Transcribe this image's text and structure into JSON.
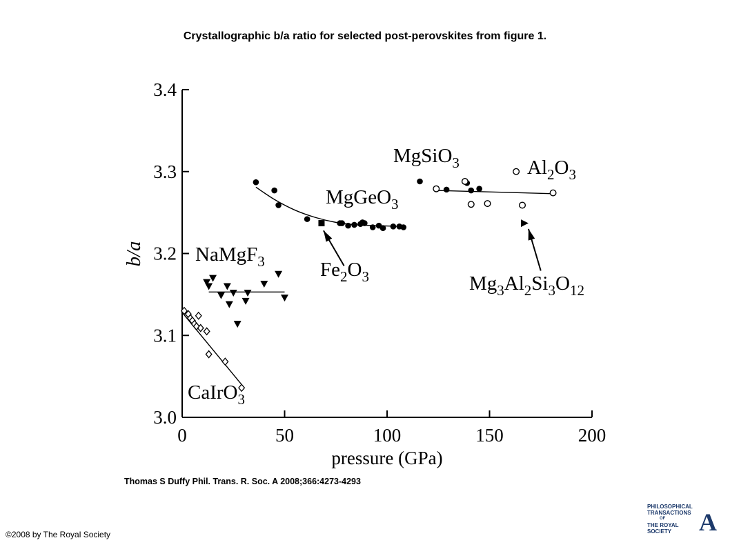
{
  "title": "Crystallographic b/a ratio for selected post-perovskites from figure 1.",
  "citation": "Thomas S Duffy Phil. Trans. R. Soc. A 2008;366:4273-4293",
  "copyright": "©2008 by The Royal Society",
  "logo": {
    "lines": [
      "PHILOSOPHICAL",
      "TRANSACTIONS",
      "OF",
      "THE ROYAL",
      "SOCIETY"
    ],
    "letter": "A"
  },
  "chart_data": {
    "type": "scatter",
    "xlabel": "pressure (GPa)",
    "ylabel": "b/a",
    "xlim": [
      0,
      200
    ],
    "ylim": [
      3.0,
      3.4
    ],
    "xticks": [
      "0",
      "50",
      "100",
      "150",
      "200"
    ],
    "yticks": [
      "3.0",
      "3.1",
      "3.2",
      "3.3",
      "3.4"
    ],
    "series": [
      {
        "name": "CaIrO3",
        "label_parts": [
          [
            "CaIrO",
            ""
          ],
          [
            "3",
            "sub"
          ]
        ],
        "marker": "diamond-open",
        "points": [
          [
            1,
            3.13
          ],
          [
            3,
            3.126
          ],
          [
            4,
            3.121
          ],
          [
            5,
            3.118
          ],
          [
            6,
            3.114
          ],
          [
            7,
            3.111
          ],
          [
            8,
            3.124
          ],
          [
            9,
            3.109
          ],
          [
            12,
            3.105
          ],
          [
            13,
            3.077
          ],
          [
            21,
            3.068
          ],
          [
            29,
            3.036
          ]
        ],
        "fit": {
          "kind": "line",
          "from": [
            0,
            3.128
          ],
          "to": [
            30,
            3.037
          ]
        }
      },
      {
        "name": "NaMgF3",
        "label_parts": [
          [
            "NaMgF",
            ""
          ],
          [
            "3",
            "sub"
          ]
        ],
        "marker": "triangle-down",
        "points": [
          [
            12,
            3.165
          ],
          [
            13,
            3.16
          ],
          [
            15,
            3.17
          ],
          [
            19,
            3.149
          ],
          [
            22,
            3.16
          ],
          [
            23,
            3.138
          ],
          [
            25,
            3.152
          ],
          [
            27,
            3.114
          ],
          [
            31,
            3.142
          ],
          [
            32,
            3.152
          ],
          [
            40,
            3.163
          ],
          [
            47,
            3.175
          ],
          [
            50,
            3.146
          ]
        ],
        "fit": {
          "kind": "line",
          "from": [
            13,
            3.153
          ],
          "to": [
            50,
            3.153
          ]
        }
      },
      {
        "name": "MgGeO3",
        "label_parts": [
          [
            "MgGeO",
            ""
          ],
          [
            "3",
            "sub"
          ]
        ],
        "marker": "circle-filled",
        "points": [
          [
            36,
            3.287
          ],
          [
            45,
            3.277
          ],
          [
            47,
            3.259
          ],
          [
            61,
            3.242
          ],
          [
            77,
            3.237
          ],
          [
            78,
            3.237
          ],
          [
            81,
            3.234
          ],
          [
            84,
            3.235
          ],
          [
            87,
            3.236
          ],
          [
            88,
            3.238
          ],
          [
            89,
            3.237
          ],
          [
            93,
            3.232
          ],
          [
            96,
            3.234
          ],
          [
            98,
            3.231
          ],
          [
            103,
            3.233
          ],
          [
            106,
            3.233
          ],
          [
            108,
            3.232
          ]
        ],
        "fit": {
          "kind": "curve",
          "points": [
            [
              36,
              3.281
            ],
            [
              45,
              3.266
            ],
            [
              55,
              3.253
            ],
            [
              65,
              3.244
            ],
            [
              75,
              3.238
            ],
            [
              85,
              3.235
            ],
            [
              95,
              3.234
            ],
            [
              108,
              3.233
            ]
          ]
        }
      },
      {
        "name": "Fe2O3",
        "label_parts": [
          [
            "Fe",
            ""
          ],
          [
            "2",
            "sub"
          ],
          [
            "O",
            ""
          ],
          [
            "3",
            "sub"
          ]
        ],
        "marker": "square-filled",
        "points": [
          [
            68,
            3.237
          ]
        ]
      },
      {
        "name": "MgSiO3",
        "label_parts": [
          [
            "MgSiO",
            ""
          ],
          [
            "3",
            "sub"
          ]
        ],
        "marker": "circle-filled",
        "points": [
          [
            116,
            3.288
          ],
          [
            129,
            3.278
          ],
          [
            139,
            3.286
          ],
          [
            141,
            3.277
          ],
          [
            145,
            3.279
          ]
        ]
      },
      {
        "name": "Al2O3",
        "label_parts": [
          [
            "Al",
            ""
          ],
          [
            "2",
            "sub"
          ],
          [
            "O",
            ""
          ],
          [
            "3",
            "sub"
          ]
        ],
        "marker": "circle-open",
        "points": [
          [
            124,
            3.279
          ],
          [
            138,
            3.288
          ],
          [
            141,
            3.26
          ],
          [
            149,
            3.261
          ],
          [
            163,
            3.3
          ],
          [
            166,
            3.259
          ],
          [
            181,
            3.274
          ]
        ],
        "fit": {
          "kind": "line",
          "from": [
            124,
            3.277
          ],
          "to": [
            181,
            3.273
          ]
        }
      },
      {
        "name": "Mg3Al2Si3O12",
        "label_parts": [
          [
            "Mg",
            ""
          ],
          [
            "3",
            "sub"
          ],
          [
            "Al",
            ""
          ],
          [
            "2",
            "sub"
          ],
          [
            "Si",
            ""
          ],
          [
            "3",
            "sub"
          ],
          [
            "O",
            ""
          ],
          [
            "12",
            "sub"
          ]
        ],
        "marker": "triangle-right",
        "points": [
          [
            167,
            3.237
          ]
        ]
      }
    ],
    "annotations": [
      {
        "target": "Fe2O3",
        "arrow_to": [
          69,
          3.228
        ],
        "arrow_from": [
          79,
          3.185
        ]
      },
      {
        "target": "Mg3Al2Si3O12",
        "arrow_to": [
          169,
          3.23
        ],
        "arrow_from": [
          175,
          3.179
        ]
      }
    ]
  }
}
